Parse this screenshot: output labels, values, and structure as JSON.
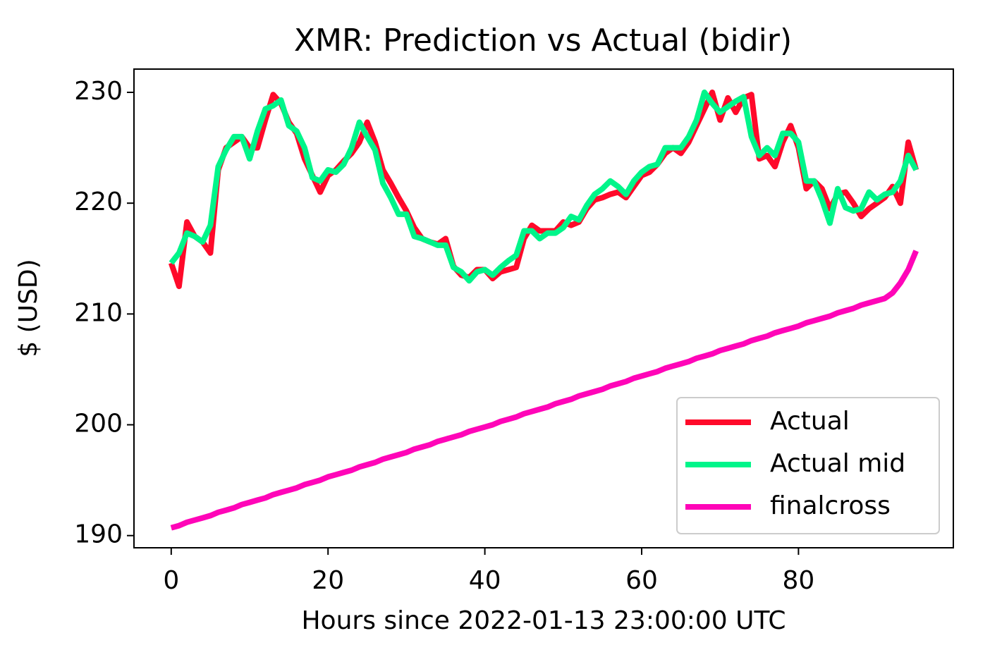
{
  "chart_data": {
    "type": "line",
    "title": "XMR: Prediction vs Actual (bidir)",
    "x_label": "Hours since 2022-01-13 23:00:00 UTC",
    "y_label": "$ (USD)",
    "x": [
      0,
      1,
      2,
      3,
      4,
      5,
      6,
      7,
      8,
      9,
      10,
      11,
      12,
      13,
      14,
      15,
      16,
      17,
      18,
      19,
      20,
      21,
      22,
      23,
      24,
      25,
      26,
      27,
      28,
      29,
      30,
      31,
      32,
      33,
      34,
      35,
      36,
      37,
      38,
      39,
      40,
      41,
      42,
      43,
      44,
      45,
      46,
      47,
      48,
      49,
      50,
      51,
      52,
      53,
      54,
      55,
      56,
      57,
      58,
      59,
      60,
      61,
      62,
      63,
      64,
      65,
      66,
      67,
      68,
      69,
      70,
      71,
      72,
      73,
      74,
      75,
      76,
      77,
      78,
      79,
      80,
      81,
      82,
      83,
      84,
      85,
      86,
      87,
      88,
      89,
      90,
      91,
      92,
      93,
      94,
      95
    ],
    "series": [
      {
        "name": "Actual",
        "color": "#ff0a2a",
        "values": [
          214.6,
          212.5,
          218.3,
          217,
          216.5,
          215.5,
          223,
          225,
          225.5,
          226,
          225,
          225,
          227.5,
          229.8,
          229,
          227.3,
          226.3,
          224,
          222.5,
          221,
          222.5,
          223,
          223.8,
          224.5,
          225.5,
          227.3,
          225.5,
          223,
          221.8,
          220.5,
          219.3,
          217.8,
          216.8,
          216.5,
          216.3,
          216.8,
          214.3,
          213.5,
          213.3,
          214,
          214,
          213.2,
          213.8,
          214,
          214.2,
          216.8,
          218,
          217.5,
          217.5,
          217.5,
          218.3,
          218,
          218.3,
          219.5,
          220.3,
          220.5,
          220.8,
          221,
          220.5,
          221.5,
          222.5,
          222.8,
          223.5,
          224.5,
          225,
          224.5,
          225.5,
          227,
          228.5,
          230,
          227.5,
          229.5,
          228.2,
          229.5,
          229.8,
          224,
          224.3,
          223.3,
          225.5,
          227,
          225,
          221.3,
          222,
          221.3,
          219.5,
          220.8,
          221,
          220,
          218.8,
          219.5,
          220,
          220.5,
          221.5,
          220,
          225.5,
          223
        ]
      },
      {
        "name": "Actual mid",
        "color": "#00f58a",
        "values": [
          214.6,
          215.5,
          217.3,
          217,
          216.5,
          218,
          223.3,
          224.8,
          226,
          226,
          224,
          226.5,
          228.5,
          228.8,
          229.3,
          227,
          226.5,
          225,
          222.3,
          222,
          223,
          222.8,
          223.5,
          225,
          227.3,
          226,
          224.8,
          221.8,
          220.5,
          219,
          219,
          217,
          216.8,
          216.5,
          216.2,
          216.2,
          214.2,
          213.8,
          213,
          213.8,
          214,
          213.5,
          214.2,
          214.8,
          215.3,
          217.5,
          217.5,
          216.8,
          217.3,
          217.3,
          217.8,
          218.8,
          218.5,
          219.8,
          220.8,
          221.3,
          222,
          221.5,
          220.8,
          222,
          222.8,
          223.3,
          223.5,
          225,
          225,
          225,
          226,
          227.5,
          230,
          229,
          228.2,
          228.7,
          229.2,
          229.6,
          226,
          224.3,
          225,
          224.3,
          226.3,
          226.3,
          225.5,
          222,
          222,
          220.3,
          218.2,
          221.3,
          219.6,
          219.3,
          219.5,
          221,
          220.3,
          220.8,
          221,
          222,
          224.3,
          223
        ]
      },
      {
        "name": "finalcross",
        "color": "#ff05b8",
        "values": [
          190.7,
          190.9,
          191.2,
          191.4,
          191.6,
          191.8,
          192.1,
          192.3,
          192.5,
          192.8,
          193.0,
          193.2,
          193.4,
          193.7,
          193.9,
          194.1,
          194.3,
          194.6,
          194.8,
          195.0,
          195.3,
          195.5,
          195.7,
          195.9,
          196.2,
          196.4,
          196.6,
          196.9,
          197.1,
          197.3,
          197.5,
          197.8,
          198.0,
          198.2,
          198.5,
          198.7,
          198.9,
          199.1,
          199.4,
          199.6,
          199.8,
          200.0,
          200.3,
          200.5,
          200.7,
          201.0,
          201.2,
          201.4,
          201.6,
          201.9,
          202.1,
          202.3,
          202.6,
          202.8,
          203.0,
          203.2,
          203.5,
          203.7,
          203.9,
          204.2,
          204.4,
          204.6,
          204.8,
          205.1,
          205.3,
          205.5,
          205.7,
          206.0,
          206.2,
          206.4,
          206.7,
          206.9,
          207.1,
          207.3,
          207.6,
          207.8,
          208.0,
          208.3,
          208.5,
          208.7,
          208.9,
          209.2,
          209.4,
          209.6,
          209.8,
          210.1,
          210.3,
          210.5,
          210.8,
          211.0,
          211.2,
          211.4,
          211.9,
          212.8,
          214.0,
          215.7
        ]
      }
    ],
    "xlim": [
      -4.75,
      99.75
    ],
    "xticks": [
      0,
      20,
      40,
      60,
      80
    ],
    "ylim": [
      188.9,
      232.1
    ],
    "yticks": [
      190,
      200,
      210,
      220,
      230
    ],
    "legend": "lower right"
  }
}
